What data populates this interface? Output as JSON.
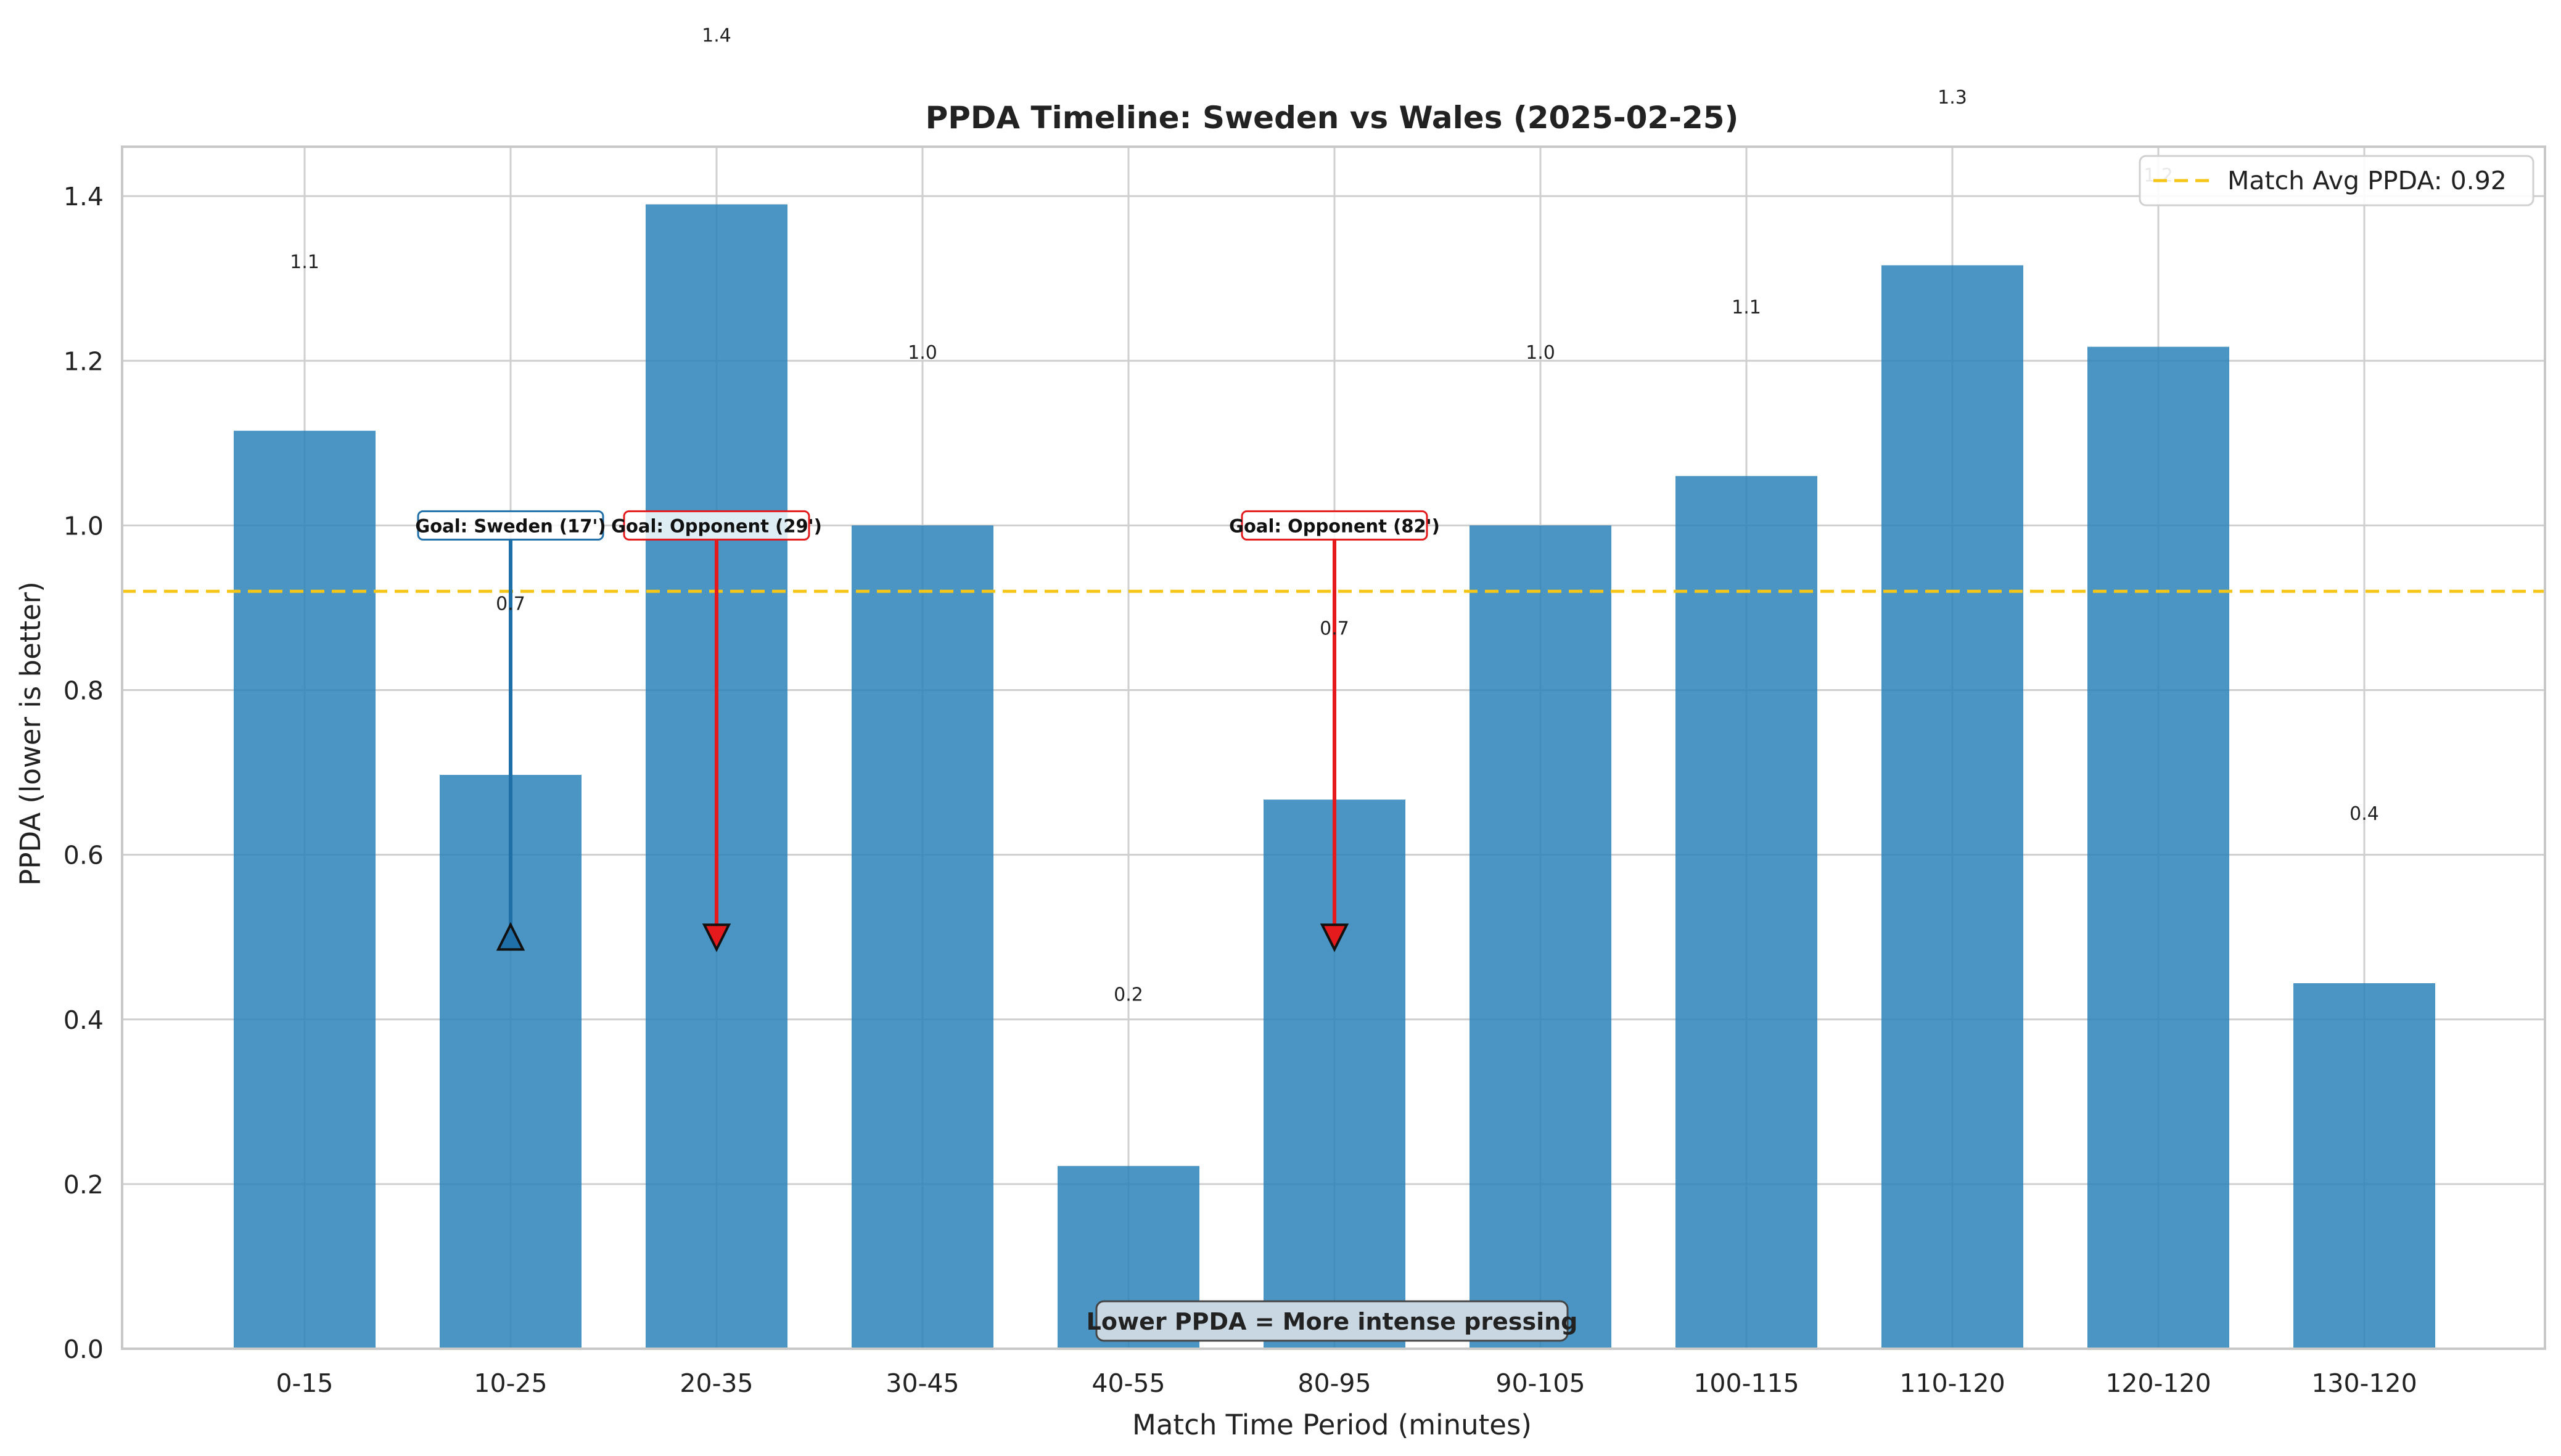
{
  "chart_data": {
    "type": "bar",
    "title": "PPDA Timeline: Sweden vs Wales (2025-02-25)",
    "xlabel": "Match Time Period (minutes)",
    "ylabel": "PPDA (lower is better)",
    "ylim": [
      0,
      1.46
    ],
    "yticks": [
      0.0,
      0.2,
      0.4,
      0.6,
      0.8,
      1.0,
      1.2,
      1.4
    ],
    "categories": [
      "0-15",
      "10-25",
      "20-35",
      "30-45",
      "40-55",
      "80-95",
      "90-105",
      "100-115",
      "110-120",
      "120-120",
      "130-120"
    ],
    "values": [
      1.115,
      0.697,
      1.39,
      1.0,
      0.222,
      0.667,
      1.0,
      1.06,
      1.316,
      1.217,
      0.444
    ],
    "value_labels": [
      "1.1",
      "0.7",
      "1.4",
      "1.0",
      "0.2",
      "0.7",
      "1.0",
      "1.1",
      "1.3",
      "1.2",
      "0.4"
    ],
    "value_label_y": [
      1.32,
      0.905,
      1.595,
      1.21,
      0.43,
      0.875,
      1.21,
      1.265,
      1.52,
      1.425,
      0.65
    ],
    "bar_color": "#2b83ba",
    "grid": true,
    "average_line": {
      "value": 0.92,
      "label": "Match Avg PPDA: 0.92",
      "color": "#f5c518"
    },
    "legend": {
      "placement": "top-right"
    },
    "goals": [
      {
        "category_index": 1,
        "label": "Goal: Sweden (17')",
        "team": "Sweden",
        "color": "#1f6fa8",
        "marker": "triangle-up",
        "y_label": 1.0,
        "y_marker": 0.5
      },
      {
        "category_index": 2,
        "label": "Goal: Opponent (29')",
        "team": "Opponent",
        "color": "#e41a1c",
        "marker": "triangle-down",
        "y_label": 1.0,
        "y_marker": 0.5
      },
      {
        "category_index": 5,
        "label": "Goal: Opponent (82')",
        "team": "Opponent",
        "color": "#e41a1c",
        "marker": "triangle-down",
        "y_label": 1.0,
        "y_marker": 0.5
      }
    ],
    "note": "Lower PPDA = More intense pressing"
  }
}
